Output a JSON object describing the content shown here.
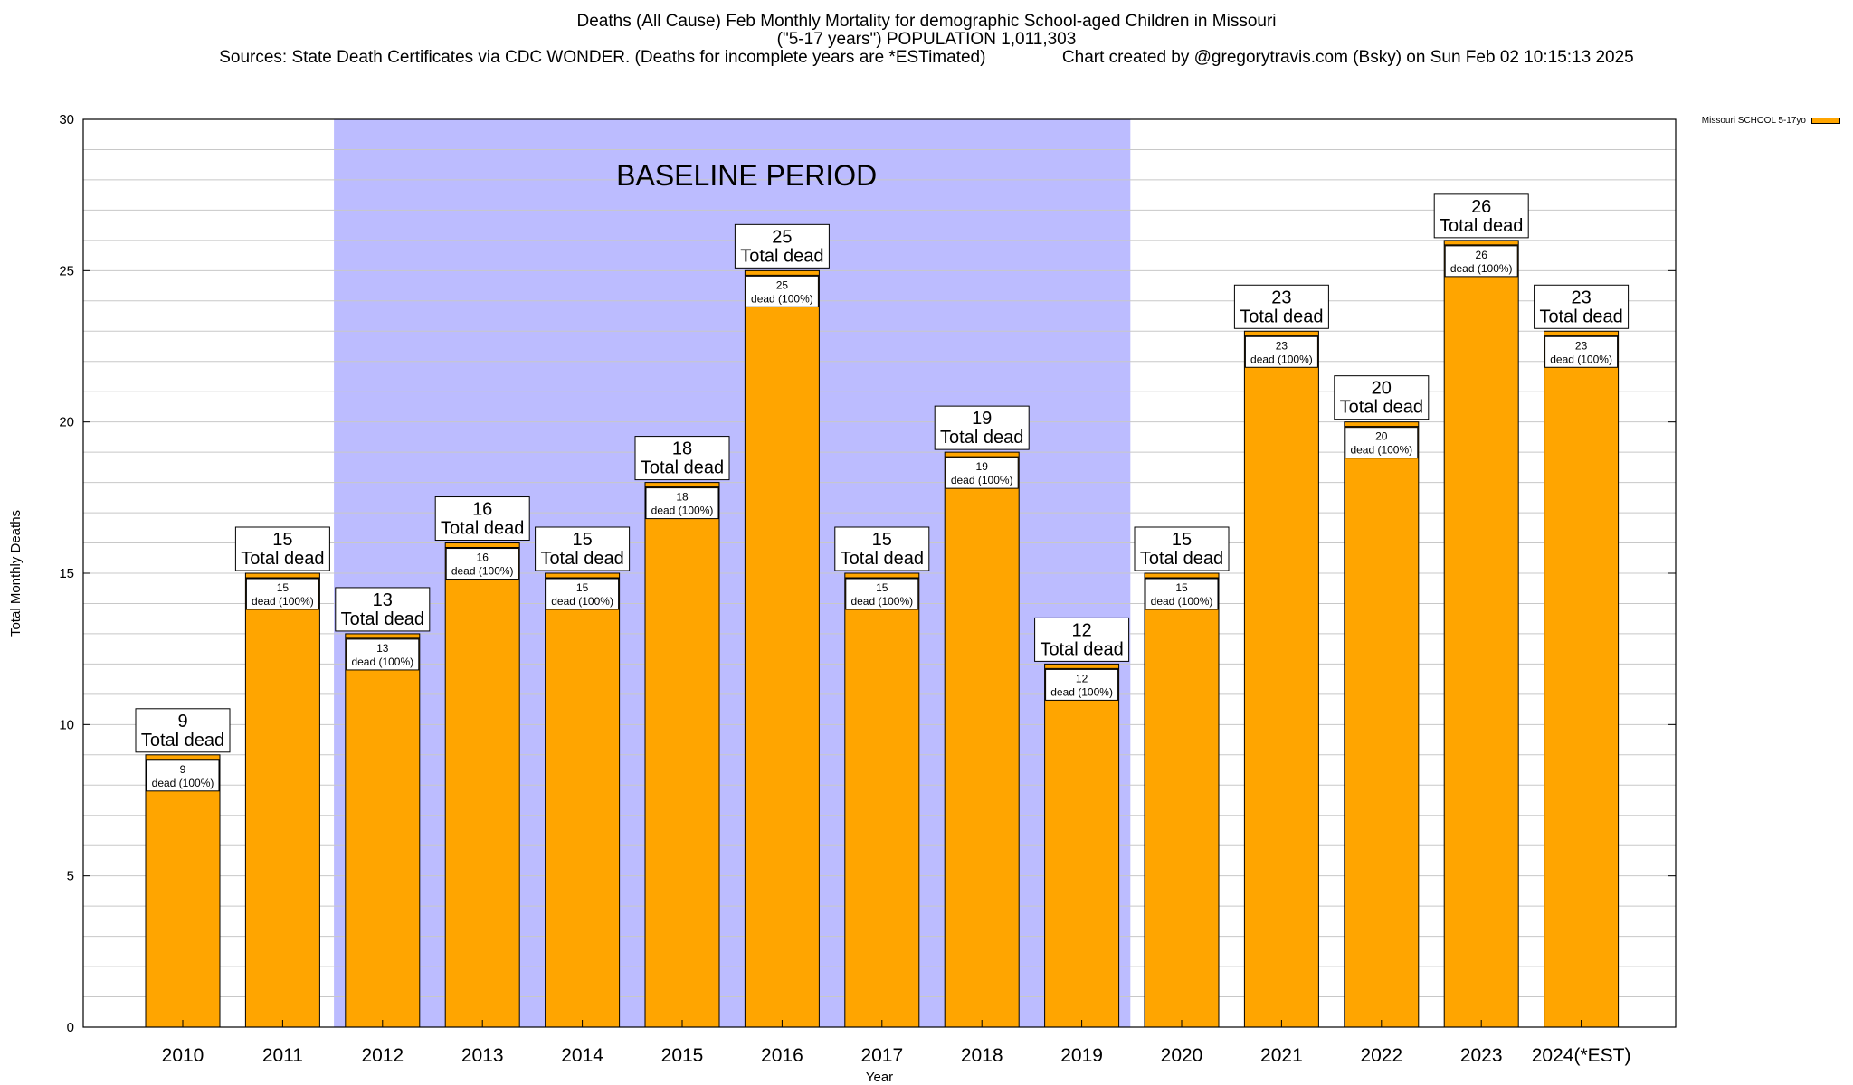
{
  "header": {
    "title": "Deaths (All Cause) Feb Monthly Mortality for demographic School-aged Children in Missouri",
    "subtitle": "(\"5-17 years\") POPULATION 1,011,303",
    "sources": "Sources: State Death Certificates via CDC WONDER. (Deaths for incomplete years are *ESTimated)",
    "credit": "Chart created by @gregorytravis.com (Bsky) on Sun Feb 02 10:15:13 2025"
  },
  "legend": {
    "label": "Missouri SCHOOL 5-17yo"
  },
  "chart_data": {
    "type": "bar",
    "title": "Deaths (All Cause) Feb Monthly Mortality for demographic School-aged Children in Missouri",
    "xlabel": "Year",
    "ylabel": "Total Monthly Deaths",
    "ylim": [
      0,
      30
    ],
    "yticks": [
      0,
      5,
      10,
      15,
      20,
      25,
      30
    ],
    "grid": true,
    "legend_position": "top-right",
    "categories": [
      "2010",
      "2011",
      "2012",
      "2013",
      "2014",
      "2015",
      "2016",
      "2017",
      "2018",
      "2019",
      "2020",
      "2021",
      "2022",
      "2023",
      "2024(*EST)"
    ],
    "series": [
      {
        "name": "Missouri SCHOOL 5-17yo",
        "color": "#ffa500",
        "values": [
          9,
          15,
          13,
          16,
          15,
          18,
          25,
          15,
          19,
          12,
          15,
          23,
          20,
          26,
          23
        ]
      }
    ],
    "annotations": {
      "baseline_label": "BASELINE PERIOD",
      "baseline_range": [
        "2012",
        "2019"
      ],
      "baseline_color": "#bcbcff",
      "total_label": "Total dead",
      "inner_label": "dead (100%)"
    }
  }
}
